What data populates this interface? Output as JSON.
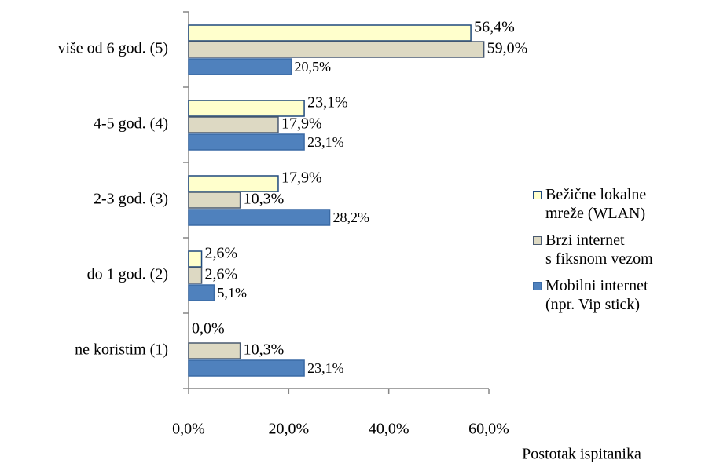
{
  "chart_data": {
    "type": "hbar",
    "xlabel": "Postotak ispitanika",
    "categories": [
      "više od 6 god. (5)",
      "4-5 god. (4)",
      "2-3 god. (3)",
      "do 1 god. (2)",
      "ne koristim (1)"
    ],
    "series": [
      {
        "name": "Bežične lokalne\nmreže (WLAN)",
        "color": "#ffffcc",
        "border": "#1f497d",
        "values": [
          56.4,
          23.1,
          17.9,
          2.6,
          0.0
        ],
        "value_labels": [
          "56,4%",
          "23,1%",
          "17,9%",
          "2,6%",
          "0,0%"
        ]
      },
      {
        "name": "Brzi internet\ns fiksnom vezom",
        "color": "#ddd9c3",
        "border": "#4a5a70",
        "values": [
          59.0,
          17.9,
          10.3,
          2.6,
          10.3
        ],
        "value_labels": [
          "59,0%",
          "17,9%",
          "10,3%",
          "2,6%",
          "10,3%"
        ]
      },
      {
        "name": "Mobilni internet\n(npr. Vip stick)",
        "color": "#4f81bd",
        "border": "#3a6aa5",
        "values": [
          20.5,
          23.1,
          28.2,
          5.1,
          23.1
        ],
        "value_labels": [
          "20,5%",
          "23,1%",
          "28,2%",
          "5,1%",
          "23,1%"
        ]
      }
    ],
    "xlim": [
      0,
      60
    ],
    "xticks": [
      {
        "value": 0,
        "label": "0,0%"
      },
      {
        "value": 20,
        "label": "20,0%"
      },
      {
        "value": 40,
        "label": "40,0%"
      },
      {
        "value": 60,
        "label": "60,0%"
      }
    ],
    "legend": "right"
  }
}
